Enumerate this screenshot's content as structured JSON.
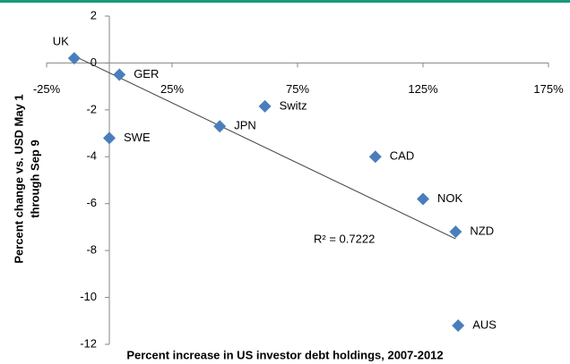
{
  "chart_data": {
    "type": "scatter",
    "x_label": "Percent increase in US investor debt holdings, 2007-2012",
    "y_label": [
      "Percent change vs. USD May 1",
      "through Sep 9"
    ],
    "labels": [
      "UK",
      "GER",
      "SWE",
      "JPN",
      "Switz",
      "CAD",
      "NOK",
      "NZD",
      "AUS"
    ],
    "x": [
      -14,
      4,
      0,
      44,
      62,
      106,
      125,
      138,
      139
    ],
    "values": [
      0.2,
      -0.5,
      -3.2,
      -2.7,
      -1.85,
      -4.0,
      -5.8,
      -7.2,
      -11.2
    ],
    "color": "#4a7ebb",
    "trendline": {
      "x": [
        -14,
        138
      ],
      "y": [
        0.3,
        -7.5
      ],
      "color": "#404040"
    },
    "annotation": "R² = 0.7222",
    "xlim": [
      -25,
      175
    ],
    "xticks": [
      {
        "value": -25,
        "label": "-25%"
      },
      {
        "value": 25,
        "label": "25%"
      },
      {
        "value": 75,
        "label": "75%"
      },
      {
        "value": 125,
        "label": "125%"
      },
      {
        "value": 175,
        "label": "175%"
      }
    ],
    "ylim": [
      -12,
      2
    ],
    "yticks": [
      2,
      0,
      -2,
      -4,
      -6,
      -8,
      -10,
      -12
    ]
  }
}
